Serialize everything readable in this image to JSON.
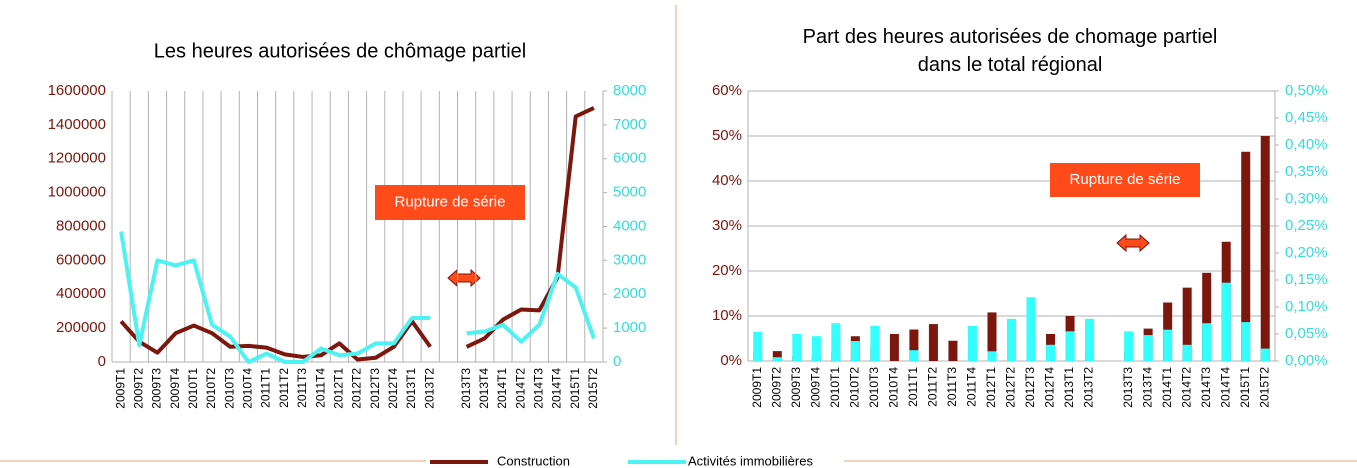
{
  "chart_data": [
    {
      "type": "line",
      "title": "Les heures autorisées de chômage partiel",
      "categories": [
        "2009T1",
        "2009T2",
        "2009T3",
        "2009T4",
        "2010T1",
        "2010T2",
        "2010T3",
        "2010T4",
        "2011T1",
        "2011T2",
        "2011T3",
        "2011T4",
        "2012T1",
        "2012T2",
        "2012T3",
        "2012T4",
        "2013T1",
        "2013T2",
        null,
        "2013T3",
        "2013T4",
        "2014T1",
        "2014T2",
        "2014T3",
        "2014T4",
        "2015T1",
        "2015T2"
      ],
      "series": [
        {
          "name": "Construction",
          "color": "#7b170c",
          "values": [
            240000,
            120000,
            55000,
            170000,
            215000,
            170000,
            90000,
            95000,
            85000,
            45000,
            30000,
            40000,
            110000,
            15000,
            25000,
            90000,
            240000,
            90000,
            null,
            90000,
            140000,
            250000,
            310000,
            305000,
            500000,
            1450000,
            1500000
          ]
        },
        {
          "name": "Activités immobilières",
          "color": "#4df2f2",
          "axis": "y2",
          "values": [
            3850,
            500,
            3000,
            2850,
            3000,
            1100,
            750,
            0,
            250,
            0,
            0,
            400,
            200,
            250,
            550,
            550,
            1300,
            1300,
            null,
            850,
            900,
            1100,
            600,
            1100,
            2600,
            2200,
            700
          ]
        }
      ],
      "ylim": [
        0,
        1600000
      ],
      "yticks": [
        0,
        200000,
        400000,
        600000,
        800000,
        1000000,
        1200000,
        1400000,
        1600000
      ],
      "y2lim": [
        0,
        8000
      ],
      "y2ticks": [
        0,
        1000,
        2000,
        3000,
        4000,
        5000,
        6000,
        7000,
        8000
      ],
      "grid": "x",
      "annotation": "Rupture de série"
    },
    {
      "type": "bar",
      "title": "Part des heures autorisées de chomage partiel\ndans le total régional",
      "categories": [
        "2009T1",
        "2009T2",
        "2009T3",
        "2009T4",
        "2010T1",
        "2010T2",
        "2010T3",
        "2010T4",
        "2011T1",
        "2011T2",
        "2011T3",
        "2011T4",
        "2012T1",
        "2012T2",
        "2012T3",
        "2012T4",
        "2013T1",
        "2013T2",
        null,
        "2013T3",
        "2013T4",
        "2014T1",
        "2014T2",
        "2014T3",
        "2014T4",
        "2015T1",
        "2015T2"
      ],
      "series": [
        {
          "color": "#7b170c",
          "values": [
            2,
            2.2,
            1,
            1,
            2,
            5.5,
            3,
            6,
            7,
            8.2,
            4.5,
            2,
            10.8,
            3,
            5,
            6,
            10,
            2,
            null,
            2,
            7.2,
            13,
            16.3,
            19.6,
            26.5,
            46.5,
            50
          ]
        },
        {
          "color": "#33ffff",
          "axis": "y2",
          "values": [
            0.054,
            0.007,
            0.05,
            0.046,
            0.07,
            0.037,
            0.065,
            0,
            0.02,
            0,
            0,
            0.065,
            0.018,
            0.078,
            0.118,
            0.03,
            0.055,
            0.078,
            null,
            0.055,
            0.048,
            0.058,
            0.03,
            0.07,
            0.145,
            0.072,
            0.023
          ]
        }
      ],
      "ylim": [
        0,
        60
      ],
      "yticks": [
        {
          "value": 0,
          "label": "0%"
        },
        {
          "value": 10,
          "label": "10%"
        },
        {
          "value": 20,
          "label": "20%"
        },
        {
          "value": 30,
          "label": "30%"
        },
        {
          "value": 40,
          "label": "40%"
        },
        {
          "value": 50,
          "label": "50%"
        },
        {
          "value": 60,
          "label": "60%"
        }
      ],
      "y2lim": [
        0,
        0.5
      ],
      "y2ticks": [
        {
          "value": 0,
          "label": "0,00%"
        },
        {
          "value": 0.05,
          "label": "0,05%"
        },
        {
          "value": 0.1,
          "label": "0,10%"
        },
        {
          "value": 0.15,
          "label": "0,15%"
        },
        {
          "value": 0.2,
          "label": "0,20%"
        },
        {
          "value": 0.25,
          "label": "0,25%"
        },
        {
          "value": 0.3,
          "label": "0,30%"
        },
        {
          "value": 0.35,
          "label": "0,35%"
        },
        {
          "value": 0.4,
          "label": "0,40%"
        },
        {
          "value": 0.45,
          "label": "0,45%"
        },
        {
          "value": 0.5,
          "label": "0,50%"
        }
      ],
      "grid": "y",
      "annotation": "Rupture de série"
    }
  ]
}
